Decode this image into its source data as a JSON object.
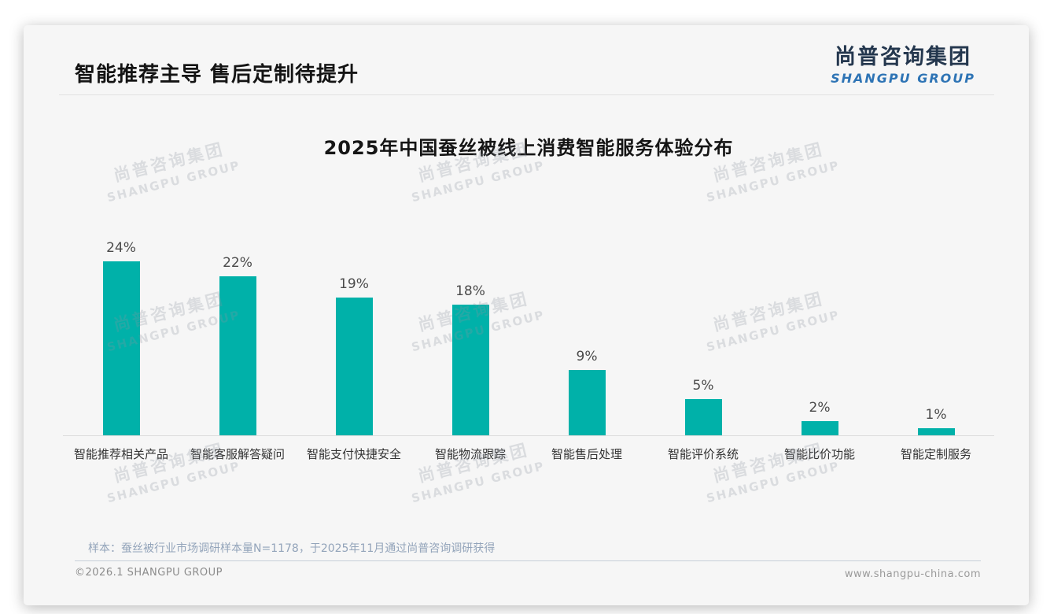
{
  "page": {
    "header_title": "智能推荐主导 售后定制待提升",
    "logo": {
      "cn": "尚普咨询集团",
      "en": "SHANGPU GROUP"
    },
    "watermark": {
      "cn": "尚普咨询集团",
      "en": "SHANGPU GROUP"
    },
    "sample_note": "样本：蚕丝被行业市场调研样本量N=1178，于2025年11月通过尚普咨询调研获得",
    "footer": {
      "copyright": "©2026.1 SHANGPU GROUP",
      "website": "www.shangpu-china.com"
    }
  },
  "chart_data": {
    "type": "bar",
    "title": "2025年中国蚕丝被线上消费智能服务体验分布",
    "categories": [
      "智能推荐相关产品",
      "智能客服解答疑问",
      "智能支付快捷安全",
      "智能物流跟踪",
      "智能售后处理",
      "智能评价系统",
      "智能比价功能",
      "智能定制服务"
    ],
    "values": [
      24,
      22,
      19,
      18,
      9,
      5,
      2,
      1
    ],
    "value_labels": [
      "24%",
      "22%",
      "19%",
      "18%",
      "9%",
      "5%",
      "2%",
      "1%"
    ],
    "bar_color": "#00b1a9",
    "label_color": "#4a4a4a",
    "xlabel": "",
    "ylabel": "",
    "ylim": [
      0,
      25
    ],
    "grid": false,
    "legend": "none"
  }
}
